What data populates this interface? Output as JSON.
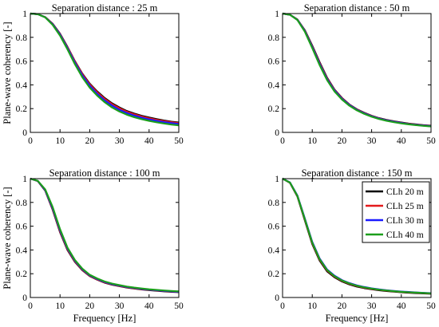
{
  "chart_data": [
    {
      "type": "line",
      "title": "Separation distance : 25 m",
      "xlabel": "",
      "ylabel": "Plane-wave coherency [-]",
      "xlim": [
        0,
        50
      ],
      "ylim": [
        0,
        1
      ],
      "xticks": [
        "0",
        "10",
        "20",
        "30",
        "40",
        "50"
      ],
      "yticks": [
        "0",
        "0.2",
        "0.4",
        "0.6",
        "0.8",
        "1"
      ],
      "legend": false,
      "x": [
        0,
        2.5,
        5,
        7.5,
        10,
        12.5,
        15,
        17.5,
        20,
        22.5,
        25,
        27.5,
        30,
        32.5,
        35,
        37.5,
        40,
        42.5,
        45,
        47.5,
        50
      ],
      "series": [
        {
          "name": "CLh 20 m",
          "color": "#000000",
          "values": [
            1.0,
            0.995,
            0.97,
            0.915,
            0.83,
            0.72,
            0.6,
            0.495,
            0.41,
            0.345,
            0.29,
            0.245,
            0.21,
            0.18,
            0.158,
            0.14,
            0.125,
            0.112,
            0.1,
            0.09,
            0.083
          ]
        },
        {
          "name": "CLh 25 m",
          "color": "#e41a1c",
          "values": [
            1.0,
            0.995,
            0.97,
            0.913,
            0.827,
            0.717,
            0.597,
            0.49,
            0.404,
            0.338,
            0.283,
            0.238,
            0.203,
            0.174,
            0.152,
            0.134,
            0.119,
            0.106,
            0.095,
            0.086,
            0.078
          ]
        },
        {
          "name": "CLh 30 m",
          "color": "#1a1aff",
          "values": [
            1.0,
            0.995,
            0.969,
            0.91,
            0.823,
            0.71,
            0.588,
            0.48,
            0.393,
            0.325,
            0.27,
            0.226,
            0.19,
            0.163,
            0.141,
            0.124,
            0.109,
            0.097,
            0.087,
            0.078,
            0.071
          ]
        },
        {
          "name": "CLh 40 m",
          "color": "#1b9e1b",
          "values": [
            1.0,
            0.995,
            0.968,
            0.905,
            0.815,
            0.7,
            0.575,
            0.465,
            0.377,
            0.31,
            0.255,
            0.21,
            0.176,
            0.149,
            0.128,
            0.111,
            0.097,
            0.085,
            0.075,
            0.066,
            0.059
          ]
        }
      ]
    },
    {
      "type": "line",
      "title": "Separation distance : 50 m",
      "xlabel": "",
      "ylabel": "",
      "xlim": [
        0,
        50
      ],
      "ylim": [
        0,
        1
      ],
      "xticks": [
        "0",
        "10",
        "20",
        "30",
        "40",
        "50"
      ],
      "yticks": [
        "0",
        "0.2",
        "0.4",
        "0.6",
        "0.8",
        "1"
      ],
      "legend": false,
      "x": [
        0,
        2.5,
        5,
        7.5,
        10,
        12.5,
        15,
        17.5,
        20,
        22.5,
        25,
        27.5,
        30,
        32.5,
        35,
        37.5,
        40,
        42.5,
        45,
        47.5,
        50
      ],
      "series": [
        {
          "name": "CLh 20 m",
          "color": "#000000",
          "values": [
            1.0,
            0.99,
            0.95,
            0.86,
            0.73,
            0.59,
            0.46,
            0.36,
            0.29,
            0.235,
            0.195,
            0.165,
            0.14,
            0.12,
            0.105,
            0.093,
            0.083,
            0.074,
            0.067,
            0.061,
            0.056
          ]
        },
        {
          "name": "CLh 25 m",
          "color": "#e41a1c",
          "values": [
            1.0,
            0.99,
            0.949,
            0.857,
            0.724,
            0.583,
            0.455,
            0.357,
            0.287,
            0.233,
            0.193,
            0.163,
            0.138,
            0.118,
            0.103,
            0.091,
            0.081,
            0.072,
            0.065,
            0.059,
            0.054
          ]
        },
        {
          "name": "CLh 30 m",
          "color": "#1a1aff",
          "values": [
            1.0,
            0.99,
            0.948,
            0.853,
            0.718,
            0.576,
            0.448,
            0.352,
            0.283,
            0.23,
            0.19,
            0.16,
            0.136,
            0.116,
            0.101,
            0.089,
            0.079,
            0.07,
            0.063,
            0.057,
            0.052
          ]
        },
        {
          "name": "CLh 40 m",
          "color": "#1b9e1b",
          "values": [
            1.0,
            0.99,
            0.946,
            0.848,
            0.71,
            0.566,
            0.44,
            0.345,
            0.277,
            0.225,
            0.186,
            0.156,
            0.132,
            0.113,
            0.098,
            0.086,
            0.076,
            0.068,
            0.061,
            0.055,
            0.05
          ]
        }
      ]
    },
    {
      "type": "line",
      "title": "Separation distance : 100 m",
      "xlabel": "Frequency [Hz]",
      "ylabel": "Plane-wave coherency [-]",
      "xlim": [
        0,
        50
      ],
      "ylim": [
        0,
        1
      ],
      "xticks": [
        "0",
        "10",
        "20",
        "30",
        "40",
        "50"
      ],
      "yticks": [
        "0",
        "0.2",
        "0.4",
        "0.6",
        "0.8",
        "1"
      ],
      "legend": false,
      "x": [
        0,
        2.5,
        5,
        7.5,
        10,
        12.5,
        15,
        17.5,
        20,
        22.5,
        25,
        27.5,
        30,
        32.5,
        35,
        37.5,
        40,
        42.5,
        45,
        47.5,
        50
      ],
      "series": [
        {
          "name": "CLh 20 m",
          "color": "#000000",
          "values": [
            1.0,
            0.98,
            0.9,
            0.74,
            0.55,
            0.4,
            0.3,
            0.23,
            0.18,
            0.15,
            0.125,
            0.108,
            0.095,
            0.084,
            0.075,
            0.068,
            0.062,
            0.057,
            0.052,
            0.048,
            0.045
          ]
        },
        {
          "name": "CLh 25 m",
          "color": "#e41a1c",
          "values": [
            1.0,
            0.98,
            0.902,
            0.745,
            0.556,
            0.405,
            0.304,
            0.233,
            0.183,
            0.152,
            0.127,
            0.11,
            0.097,
            0.086,
            0.077,
            0.07,
            0.064,
            0.059,
            0.054,
            0.05,
            0.047
          ]
        },
        {
          "name": "CLh 30 m",
          "color": "#1a1aff",
          "values": [
            1.0,
            0.981,
            0.905,
            0.752,
            0.565,
            0.412,
            0.31,
            0.238,
            0.187,
            0.156,
            0.131,
            0.113,
            0.1,
            0.089,
            0.08,
            0.073,
            0.066,
            0.061,
            0.056,
            0.052,
            0.048
          ]
        },
        {
          "name": "CLh 40 m",
          "color": "#1b9e1b",
          "values": [
            1.0,
            0.982,
            0.91,
            0.762,
            0.575,
            0.42,
            0.316,
            0.243,
            0.191,
            0.16,
            0.135,
            0.117,
            0.104,
            0.092,
            0.083,
            0.076,
            0.069,
            0.064,
            0.059,
            0.055,
            0.051
          ]
        }
      ]
    },
    {
      "type": "line",
      "title": "Separation distance : 150 m",
      "xlabel": "Frequency [Hz]",
      "ylabel": "",
      "xlim": [
        0,
        50
      ],
      "ylim": [
        0,
        1
      ],
      "xticks": [
        "0",
        "10",
        "20",
        "30",
        "40",
        "50"
      ],
      "yticks": [
        "0",
        "0.2",
        "0.4",
        "0.6",
        "0.8",
        "1"
      ],
      "legend": true,
      "legend_position": "top-right",
      "x": [
        0,
        2.5,
        5,
        7.5,
        10,
        12.5,
        15,
        17.5,
        20,
        22.5,
        25,
        27.5,
        30,
        32.5,
        35,
        37.5,
        40,
        42.5,
        45,
        47.5,
        50
      ],
      "series": [
        {
          "name": "CLh 20 m",
          "color": "#000000",
          "values": [
            1.0,
            0.965,
            0.85,
            0.65,
            0.45,
            0.31,
            0.22,
            0.17,
            0.135,
            0.11,
            0.092,
            0.079,
            0.069,
            0.061,
            0.054,
            0.049,
            0.044,
            0.04,
            0.037,
            0.034,
            0.032
          ]
        },
        {
          "name": "CLh 25 m",
          "color": "#e41a1c",
          "values": [
            1.0,
            0.966,
            0.853,
            0.657,
            0.458,
            0.318,
            0.227,
            0.176,
            0.14,
            0.115,
            0.097,
            0.083,
            0.073,
            0.065,
            0.058,
            0.052,
            0.047,
            0.043,
            0.04,
            0.037,
            0.034
          ]
        },
        {
          "name": "CLh 30 m",
          "color": "#1a1aff",
          "values": [
            1.0,
            0.968,
            0.858,
            0.665,
            0.468,
            0.327,
            0.235,
            0.183,
            0.146,
            0.121,
            0.102,
            0.088,
            0.077,
            0.068,
            0.061,
            0.055,
            0.05,
            0.046,
            0.042,
            0.039,
            0.036
          ]
        },
        {
          "name": "CLh 40 m",
          "color": "#1b9e1b",
          "values": [
            1.0,
            0.967,
            0.855,
            0.66,
            0.462,
            0.322,
            0.231,
            0.179,
            0.143,
            0.118,
            0.099,
            0.085,
            0.075,
            0.066,
            0.059,
            0.053,
            0.048,
            0.044,
            0.041,
            0.038,
            0.035
          ]
        }
      ]
    }
  ]
}
